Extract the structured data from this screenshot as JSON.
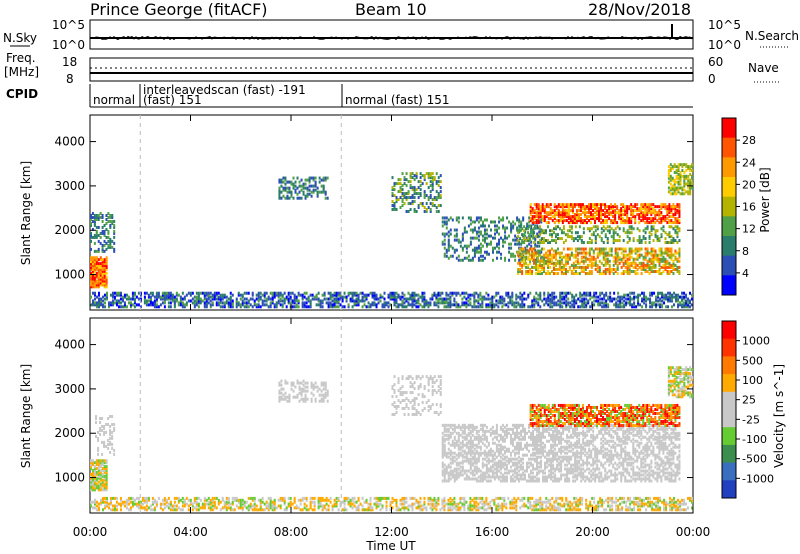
{
  "header": {
    "station": "Prince George (fitACF)",
    "beam": "Beam 10",
    "date": "28/Nov/2018"
  },
  "top_panels": {
    "nsky_label": "N.Sky",
    "nsearch_label": "N.Search",
    "nsky_ticks": [
      "10^5",
      "10^0"
    ],
    "nsearch_ticks": [
      "10^5",
      "10^0"
    ],
    "freq_label_1": "Freq.",
    "freq_label_2": "[MHz]",
    "freq_ticks": [
      "18",
      "8"
    ],
    "nave_label": "Nave",
    "nave_ticks": [
      "60",
      "0"
    ],
    "cpid_label": "CPID",
    "cpid_segments": [
      {
        "line1": "normal",
        "line2": ""
      },
      {
        "line1": "interleavedscan (fast) -191",
        "line2": "(fast) 151"
      },
      {
        "line1": "normal (fast) 151",
        "line2": ""
      }
    ]
  },
  "colors": {
    "power_scale": [
      "#0000ff",
      "#2c4fb5",
      "#2a7c6b",
      "#4fa046",
      "#b3b300",
      "#ffcc00",
      "#ff9900",
      "#ff5500",
      "#ff0000"
    ],
    "velocity_scale": [
      "#2040c0",
      "#3a6fbf",
      "#3b8e4d",
      "#66cc33",
      "#c8c8c8",
      "#c8c8c8",
      "#ffaa00",
      "#ff7a00",
      "#ff3300",
      "#ff0000"
    ],
    "ground": "#c8c8c8"
  },
  "chart_data": [
    {
      "type": "heatmap",
      "panel": "power",
      "ylabel": "Slant Range [km]",
      "xlabel": "Time UT",
      "yticks": [
        "1000",
        "2000",
        "3000",
        "4000"
      ],
      "xticks": [
        "00:00",
        "04:00",
        "08:00",
        "12:00",
        "16:00",
        "20:00",
        "00:00"
      ],
      "ylim": [
        200,
        4600
      ],
      "xlim_hours": [
        0,
        24
      ],
      "colorbar": {
        "label": "Power [dB]",
        "ticks": [
          "28",
          "24",
          "20",
          "16",
          "12",
          "8",
          "4"
        ]
      }
    },
    {
      "type": "heatmap",
      "panel": "velocity",
      "ylabel": "Slant Range [km]",
      "xlabel": "Time UT",
      "yticks": [
        "1000",
        "2000",
        "3000",
        "4000"
      ],
      "xticks": [
        "00:00",
        "04:00",
        "08:00",
        "12:00",
        "16:00",
        "20:00",
        "00:00"
      ],
      "ylim": [
        200,
        4600
      ],
      "xlim_hours": [
        0,
        24
      ],
      "colorbar": {
        "label": "Velocity [m s^-1]",
        "ticks": [
          "1000",
          "500",
          "100",
          "25",
          "-25",
          "-100",
          "-500",
          "-1000"
        ]
      }
    }
  ],
  "xaxis_label": "Time UT"
}
